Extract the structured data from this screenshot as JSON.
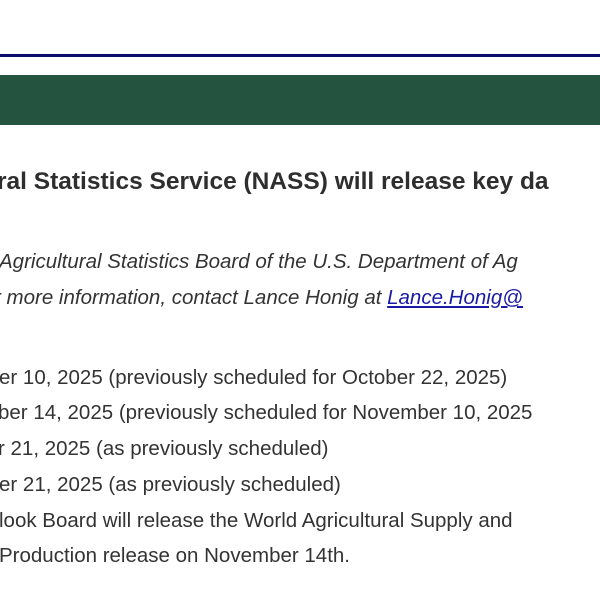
{
  "header": {
    "accent_rule_color": "#0b0b6e",
    "band_color": "#24533f"
  },
  "headline": "ral Statistics Service (NASS) will release key da",
  "intro": {
    "line1": "Agricultural Statistics Board of the U.S. Department of Ag",
    "line2_prefix": "r more information, contact Lance Honig at ",
    "link": "Lance.Honig@"
  },
  "schedule": [
    "er 10, 2025 (previously scheduled for October 22, 2025)",
    "ber 14, 2025 (previously scheduled for November 10, 2025",
    "r 21, 2025 (as previously scheduled)",
    "er 21, 2025 (as previously scheduled)"
  ],
  "closing": [
    "look Board will release the World Agricultural Supply and",
    "Production release on November 14th."
  ]
}
